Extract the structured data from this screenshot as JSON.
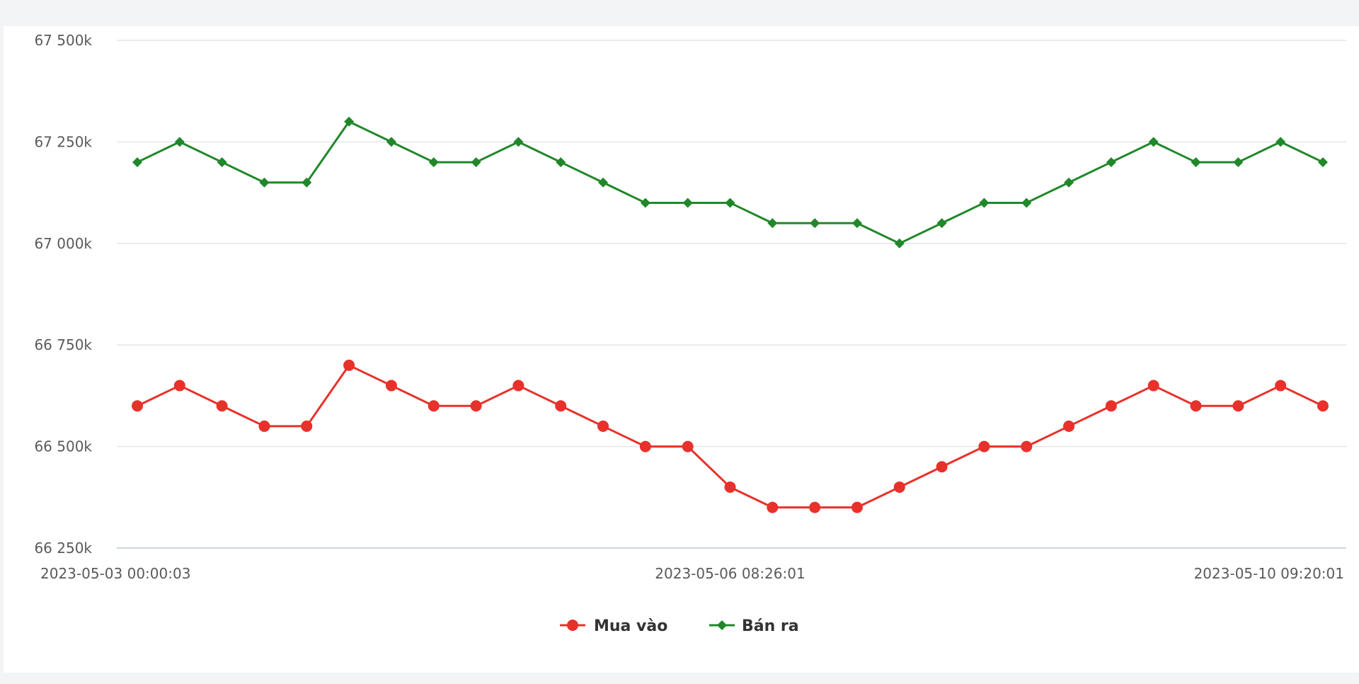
{
  "colors": {
    "buy": "#e8312a",
    "sell": "#21872a"
  },
  "chart_data": {
    "type": "line",
    "xlabel": "",
    "ylabel": "",
    "ylim": [
      66250,
      67500
    ],
    "y_ticks": [
      {
        "value": 67500,
        "label": "67 500k"
      },
      {
        "value": 67250,
        "label": "67 250k"
      },
      {
        "value": 67000,
        "label": "67 000k"
      },
      {
        "value": 66750,
        "label": "66 750k"
      },
      {
        "value": 66500,
        "label": "66 500k"
      },
      {
        "value": 66250,
        "label": "66 250k"
      }
    ],
    "x_tick_labels": [
      {
        "index": 0,
        "label": "2023-05-03 00:00:03",
        "align": "start"
      },
      {
        "index": 14,
        "label": "2023-05-06 08:26:01",
        "align": "middle"
      },
      {
        "index": 28,
        "label": "2023-05-10 09:20:01",
        "align": "end"
      }
    ],
    "legend_position": "bottom-center",
    "grid": true,
    "series": [
      {
        "name": "Mua vào",
        "color": "#e8312a",
        "marker": "circle",
        "values": [
          66600,
          66650,
          66600,
          66550,
          66550,
          66700,
          66650,
          66600,
          66600,
          66650,
          66600,
          66550,
          66500,
          66500,
          66400,
          66350,
          66350,
          66350,
          66400,
          66450,
          66500,
          66500,
          66550,
          66600,
          66650,
          66600,
          66600,
          66650,
          66600
        ]
      },
      {
        "name": "Bán ra",
        "color": "#21872a",
        "marker": "diamond",
        "values": [
          67200,
          67250,
          67200,
          67150,
          67150,
          67300,
          67250,
          67200,
          67200,
          67250,
          67200,
          67150,
          67100,
          67100,
          67100,
          67050,
          67050,
          67050,
          67000,
          67050,
          67100,
          67100,
          67150,
          67200,
          67250,
          67200,
          67200,
          67250,
          67200
        ]
      }
    ]
  }
}
